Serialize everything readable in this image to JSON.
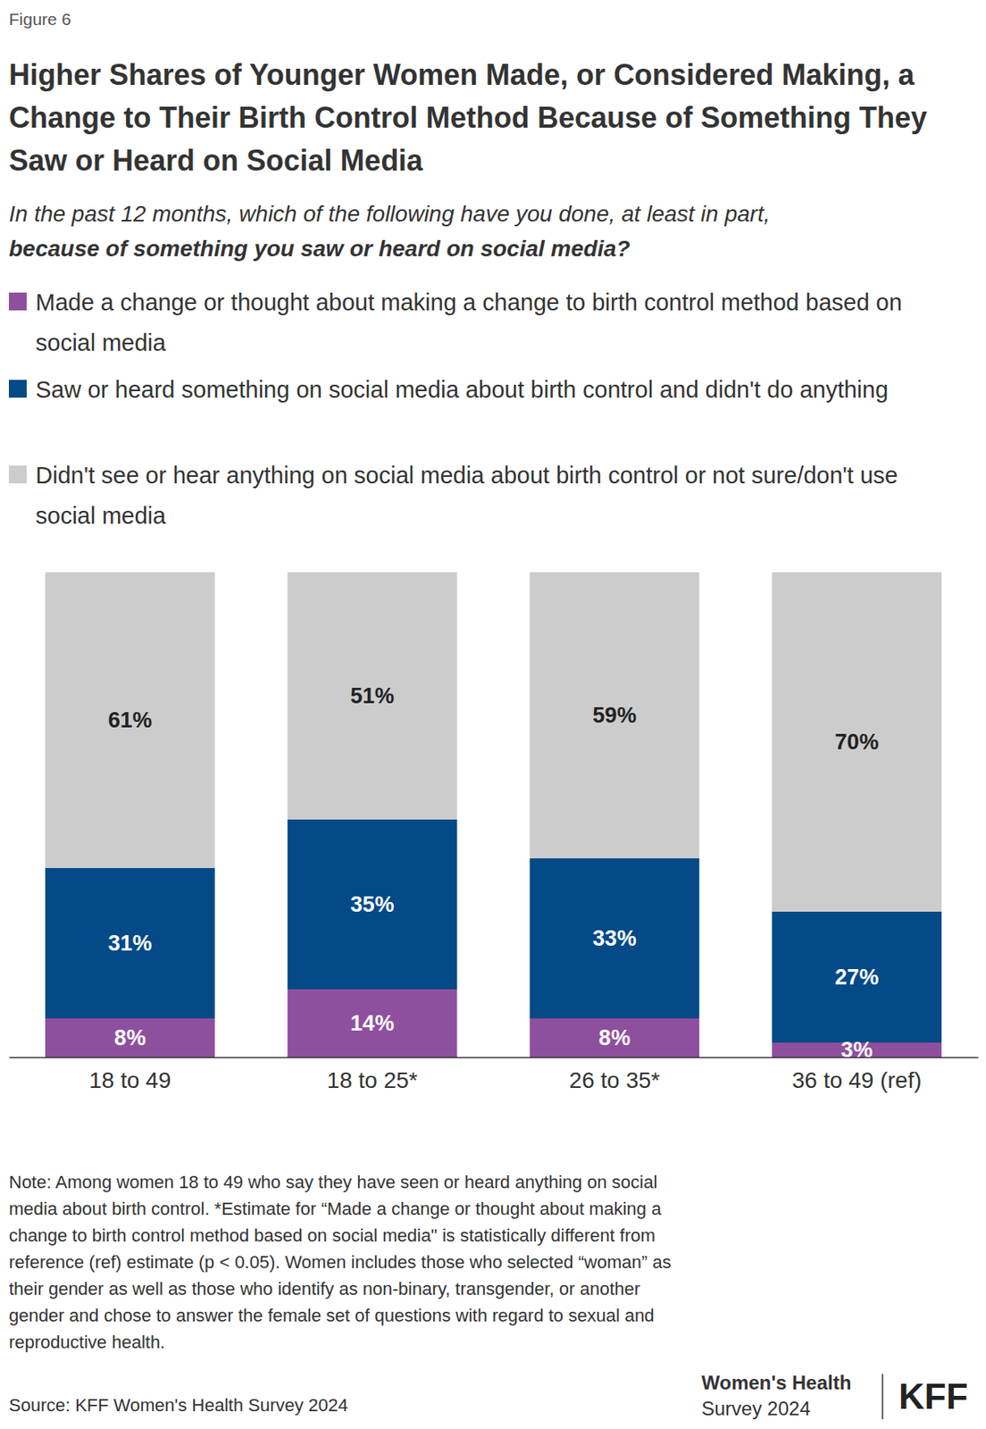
{
  "chart_data": {
    "type": "bar",
    "stacked": true,
    "data_labels": true,
    "tick_labels": "x",
    "figure_label": "Figure 6",
    "title": "Higher Shares of Younger Women Made, or Considered Making, a Change to Their Birth Control Method Because of Something They Saw or Heard on Social Media",
    "subtitle": "In the past 12 months, which of the following have you done, at least in part,",
    "subtitle_emphasis": "because of something you saw or heard on social media?",
    "categories": [
      "18 to 49",
      "18 to 25*",
      "26 to 35*",
      "36 to 49 (ref)"
    ],
    "ylim": [
      0,
      100
    ],
    "series": [
      {
        "name": "Made a change or thought about making a change to birth control method based on social media",
        "color": "#8f4f9f",
        "values": [
          8,
          14,
          8,
          3
        ],
        "value_labels": [
          "8%",
          "14%",
          "8%",
          "3%"
        ]
      },
      {
        "name": "Saw or heard something on social media about birth control and didn't do anything",
        "color": "#034a87",
        "values": [
          31,
          35,
          33,
          27
        ],
        "value_labels": [
          "31%",
          "35%",
          "33%",
          "27%"
        ]
      },
      {
        "name": "Didn't see or hear anything on social media about birth control or not sure/don't use social media",
        "color": "#cccccc",
        "values": [
          61,
          51,
          59,
          70
        ],
        "value_labels": [
          "61%",
          "51%",
          "59%",
          "70%"
        ]
      }
    ],
    "note": "Note: Among women 18 to 49 who say they have seen or heard anything on social media about birth control. *Estimate for “Made a change or thought about making a change to birth control method based on social media\" is statistically different from reference (ref) estimate (p < 0.05). Women includes those who selected “woman” as their gender as well as those who identify as non-binary, transgender, or another gender and chose to answer the female set of questions with regard to sexual and reproductive health.",
    "source": "Source: KFF Women's Health Survey 2024",
    "logo_text": [
      "Women's Health",
      "Survey 2024"
    ],
    "logo": "KFF"
  }
}
